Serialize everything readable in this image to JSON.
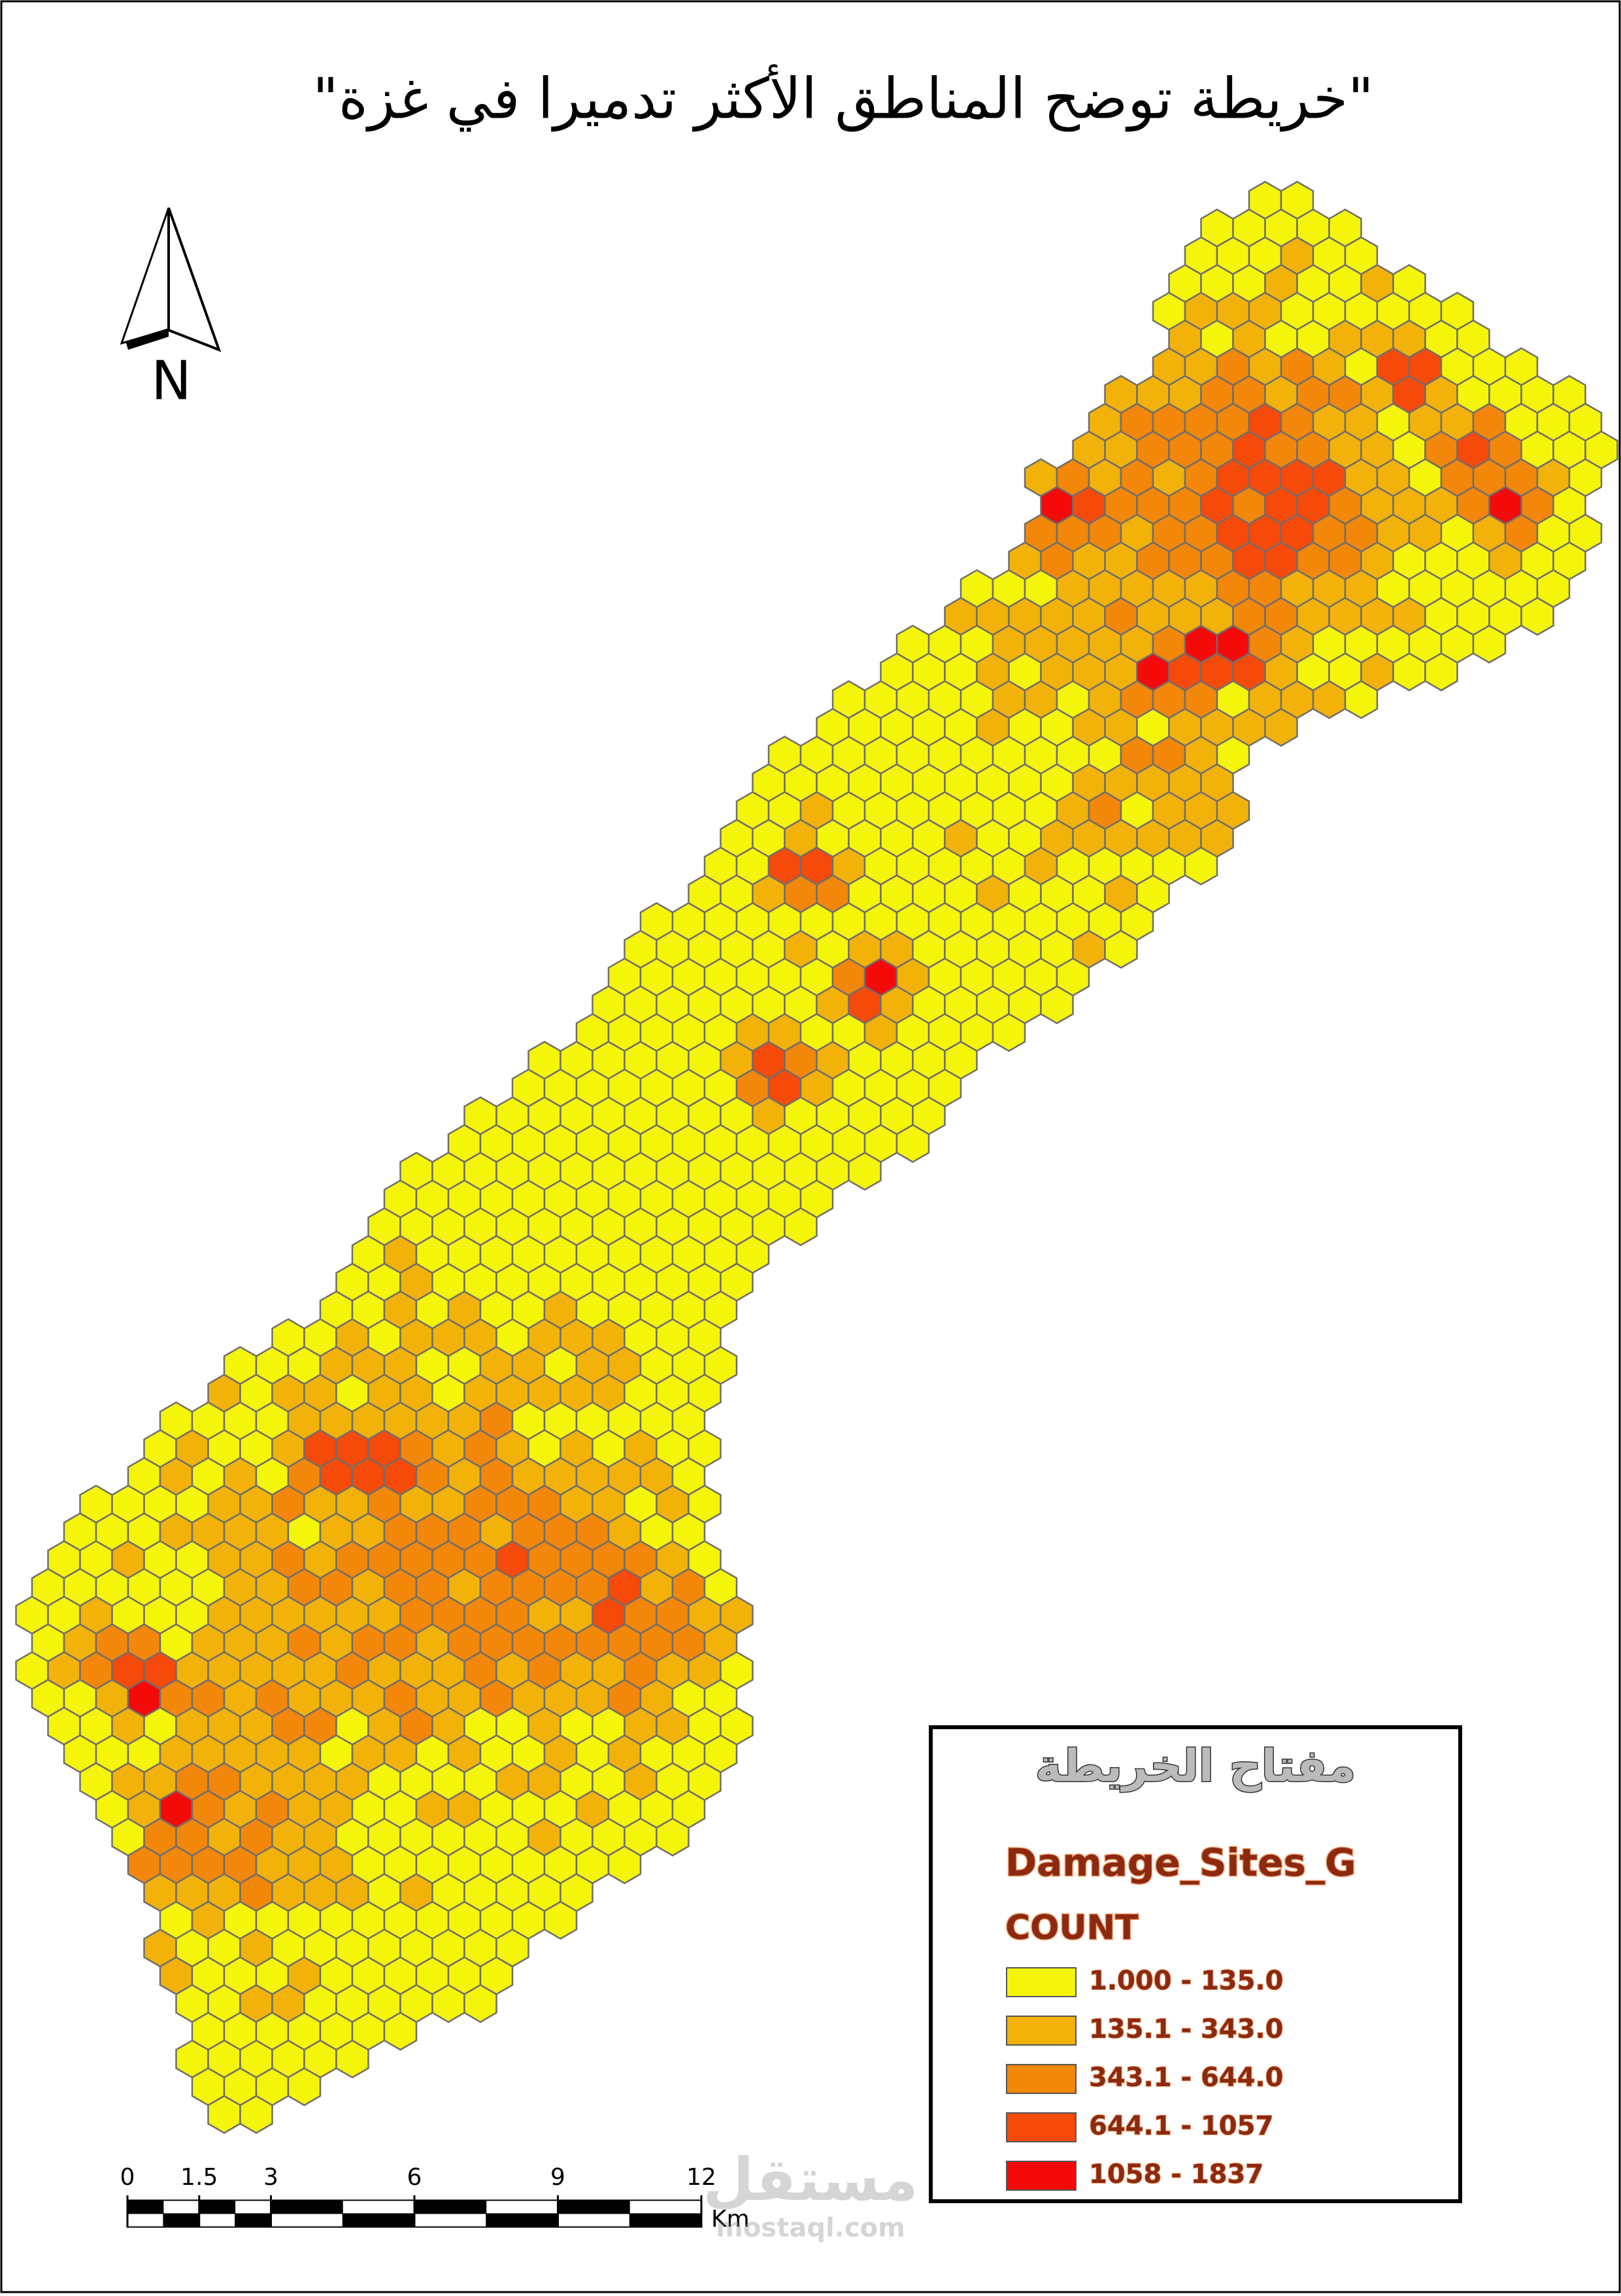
{
  "title": "\"خريطة توضح المناطق الأكثر تدميرا في غزة\"",
  "north": "N",
  "scale_bar": {
    "ticks": [
      0,
      1.5,
      3,
      6,
      9,
      12
    ],
    "unit": "Km"
  },
  "legend": {
    "title": "مفتاح الخريطة",
    "layer": "Damage_Sites_G",
    "field": "COUNT",
    "classes": [
      {
        "label": "1.000 - 135.0",
        "color": "#f5f50a"
      },
      {
        "label": "135.1 - 343.0",
        "color": "#f2b20a"
      },
      {
        "label": "343.1 - 644.0",
        "color": "#f2870a"
      },
      {
        "label": "644.1 - 1057",
        "color": "#f54a0a"
      },
      {
        "label": "1058 - 1837",
        "color": "#f50a0a"
      }
    ]
  },
  "watermark": {
    "arabic": "مستقل",
    "latin": "mostaql.com"
  }
}
